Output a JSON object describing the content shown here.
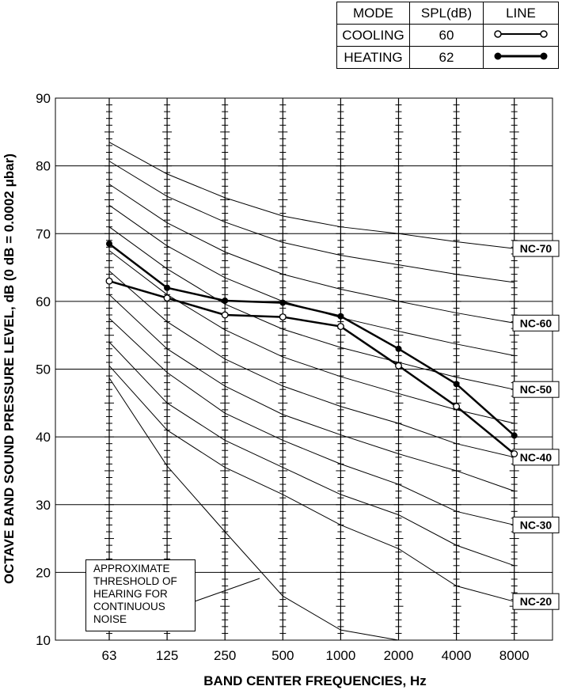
{
  "legend": {
    "headers": [
      "MODE",
      "SPL(dB)",
      "LINE"
    ],
    "rows": [
      {
        "mode": "COOLING",
        "spl": "60",
        "marker": "open-circle-line-icon"
      },
      {
        "mode": "HEATING",
        "spl": "62",
        "marker": "filled-circle-line-icon"
      }
    ]
  },
  "note": {
    "lines": [
      "APPROXIMATE",
      "THRESHOLD OF",
      "HEARING FOR",
      "CONTINUOUS",
      "NOISE"
    ]
  },
  "chart_data": {
    "type": "line",
    "title": "",
    "xlabel": "BAND CENTER FREQUENCIES, Hz",
    "ylabel": "OCTAVE BAND SOUND PRESSURE LEVEL, dB (0 dB = 0.0002 μbar)",
    "categories": [
      "63",
      "125",
      "250",
      "500",
      "1000",
      "2000",
      "4000",
      "8000"
    ],
    "y_ticks": [
      "10",
      "20",
      "30",
      "40",
      "50",
      "60",
      "70",
      "80",
      "90"
    ],
    "ylim": [
      10,
      90
    ],
    "grid": true,
    "series": [
      {
        "name": "COOLING",
        "marker": "open",
        "values": [
          63.0,
          60.5,
          58.0,
          57.7,
          56.3,
          50.5,
          44.5,
          37.5
        ]
      },
      {
        "name": "HEATING",
        "marker": "filled",
        "values": [
          68.5,
          62.0,
          60.1,
          59.8,
          57.8,
          53.0,
          47.8,
          40.2
        ]
      }
    ],
    "nc_curves": [
      {
        "label": "NC-70",
        "values": [
          83.5,
          78.8,
          75.3,
          72.6,
          71.0,
          70.0,
          68.8,
          67.8
        ]
      },
      {
        "label": "",
        "values": [
          80.7,
          75.5,
          71.7,
          68.7,
          66.8,
          65.4,
          64.0,
          62.8
        ]
      },
      {
        "label": "NC-60",
        "values": [
          77.3,
          71.6,
          67.3,
          64.0,
          61.8,
          60.0,
          58.3,
          56.8
        ]
      },
      {
        "label": "",
        "values": [
          74.2,
          68.2,
          63.5,
          60.0,
          57.6,
          55.6,
          53.7,
          52.0
        ]
      },
      {
        "label": "NC-50",
        "values": [
          71.0,
          64.8,
          59.6,
          55.9,
          53.2,
          51.0,
          48.8,
          47.0
        ]
      },
      {
        "label": "",
        "values": [
          67.5,
          61.0,
          55.8,
          51.8,
          48.9,
          46.4,
          44.0,
          42.0
        ]
      },
      {
        "label": "NC-40",
        "values": [
          64.5,
          57.0,
          51.5,
          47.5,
          44.5,
          42.0,
          39.0,
          37.0
        ]
      },
      {
        "label": "",
        "values": [
          61.0,
          53.0,
          47.5,
          43.3,
          40.3,
          37.5,
          35.0,
          32.0
        ]
      },
      {
        "label": "NC-30",
        "values": [
          57.5,
          49.5,
          43.5,
          39.5,
          36.0,
          33.0,
          29.0,
          27.0
        ]
      },
      {
        "label": "",
        "values": [
          54.0,
          45.0,
          39.5,
          35.5,
          31.5,
          28.5,
          24.0,
          21.0
        ]
      },
      {
        "label": "NC-20",
        "values": [
          50.5,
          41.0,
          35.5,
          31.5,
          27.0,
          23.5,
          18.0,
          15.7
        ]
      },
      {
        "label": "",
        "values": [
          48.7,
          35.7,
          26.0,
          16.5,
          11.5,
          10.0,
          null,
          null
        ]
      }
    ]
  }
}
